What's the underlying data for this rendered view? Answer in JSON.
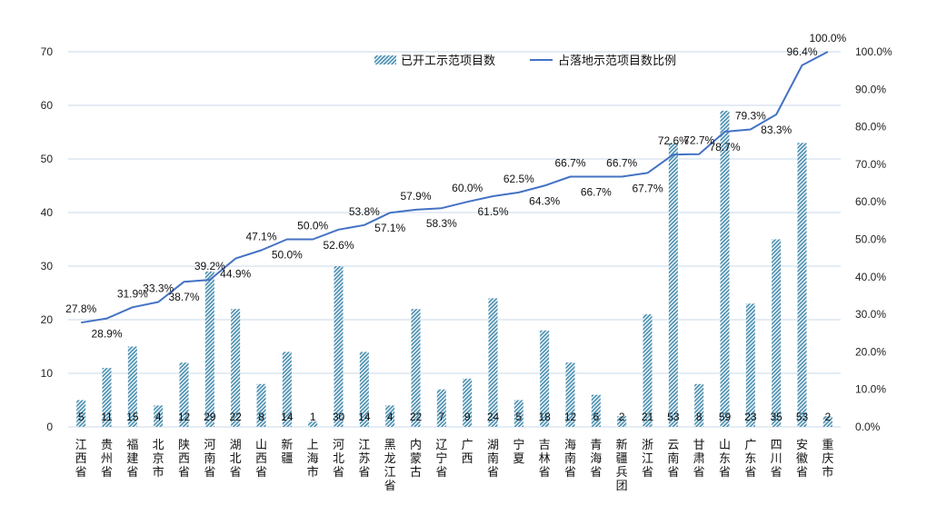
{
  "chart_data": {
    "type": "bar+line",
    "categories": [
      "江西省",
      "贵州省",
      "福建省",
      "北京市",
      "陕西省",
      "河南省",
      "湖北省",
      "山西省",
      "新疆",
      "上海市",
      "河北省",
      "江苏省",
      "黑龙江省",
      "内蒙古",
      "辽宁省",
      "广西",
      "湖南省",
      "宁夏",
      "吉林省",
      "海南省",
      "青海省",
      "新疆兵团",
      "浙江省",
      "云南省",
      "甘肃省",
      "山东省",
      "广东省",
      "四川省",
      "安徽省",
      "重庆市"
    ],
    "series": [
      {
        "name": "已开工示范项目数",
        "type": "bar",
        "axis": "left",
        "values": [
          5,
          11,
          15,
          4,
          12,
          29,
          22,
          8,
          14,
          1,
          30,
          14,
          4,
          22,
          7,
          9,
          24,
          5,
          18,
          12,
          6,
          2,
          21,
          53,
          8,
          59,
          23,
          35,
          53,
          2
        ],
        "value_labels": [
          "5",
          "11",
          "15",
          "4",
          "12",
          "29",
          "22",
          "8",
          "14",
          "1",
          "30",
          "14",
          "4",
          "22",
          "7",
          "9",
          "24",
          "5",
          "18",
          "12",
          "6",
          "2",
          "21",
          "53",
          "8",
          "59",
          "23",
          "35",
          "53",
          "2"
        ]
      },
      {
        "name": "占落地示范项目数比例",
        "type": "line",
        "axis": "right",
        "values": [
          27.8,
          28.9,
          31.9,
          33.3,
          38.7,
          39.2,
          44.9,
          47.1,
          50.0,
          50.0,
          52.6,
          53.8,
          57.1,
          57.9,
          58.3,
          60.0,
          61.5,
          62.5,
          64.3,
          66.7,
          66.7,
          66.7,
          67.7,
          72.6,
          72.7,
          78.7,
          79.3,
          83.3,
          96.4,
          100.0
        ],
        "value_labels": [
          "27.8%",
          "28.9%",
          "31.9%",
          "33.3%",
          "38.7%",
          "39.2%",
          "44.9%",
          "47.1%",
          "50.0%",
          "50.0%",
          "52.6%",
          "53.8%",
          "57.1%",
          "57.9%",
          "58.3%",
          "60.0%",
          "61.5%",
          "62.5%",
          "64.3%",
          "66.7%",
          "66.7%",
          "66.7%",
          "67.7%",
          "72.6%",
          "72.7%",
          "78.7%",
          "79.3%",
          "83.3%",
          "96.4%",
          "100.0%"
        ]
      }
    ],
    "y_left": {
      "min": 0,
      "max": 70,
      "ticks": [
        "0",
        "10",
        "20",
        "30",
        "40",
        "50",
        "60",
        "70"
      ]
    },
    "y_right": {
      "min": 0,
      "max": 100,
      "ticks": [
        "0.0%",
        "10.0%",
        "20.0%",
        "30.0%",
        "40.0%",
        "50.0%",
        "60.0%",
        "70.0%",
        "80.0%",
        "90.0%",
        "100.0%"
      ]
    },
    "grid": true,
    "legend_position": "top-right",
    "colors": {
      "bar": "#4a8fb0",
      "line": "#4472c4",
      "grid": "#c9d9ea"
    }
  }
}
